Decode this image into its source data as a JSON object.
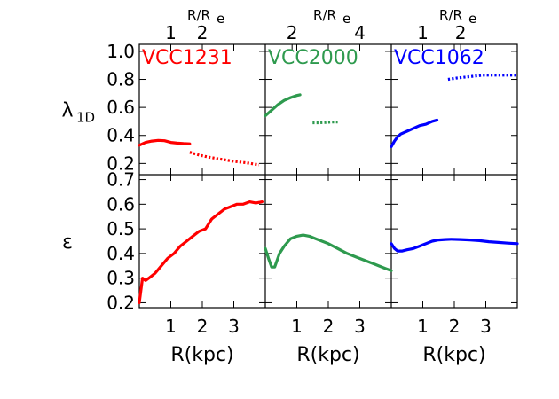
{
  "chart_data": {
    "type": "line",
    "top_axis_label": "R/R",
    "top_axis_label_sub": "e",
    "bottom_axis_label": "R(kpc)",
    "x_range": [
      0,
      4
    ],
    "x_ticks": [
      1,
      2,
      3
    ],
    "rows": [
      {
        "ylabel": "λ",
        "ylabel_sub": "1D",
        "ylim": [
          0.12,
          1.05
        ],
        "yticks": [
          0.2,
          0.4,
          0.6,
          0.8,
          1.0
        ],
        "ytick_labels": [
          "0.2",
          "0.4",
          "0.6",
          "0.8",
          "1.0"
        ]
      },
      {
        "ylabel": "ε",
        "ylabel_sub": "",
        "ylim": [
          0.18,
          0.72
        ],
        "yticks": [
          0.2,
          0.3,
          0.4,
          0.5,
          0.6,
          0.7
        ],
        "ytick_labels": [
          "0.2",
          "0.3",
          "0.4",
          "0.5",
          "0.6",
          "0.7"
        ]
      }
    ],
    "panels": [
      {
        "name": "VCC1231",
        "color": "#ff0000",
        "re_ticks": [
          1,
          2
        ],
        "re_tick_kpc": [
          1.0,
          2.0
        ],
        "lambda_solid": {
          "x": [
            0.0,
            0.2,
            0.4,
            0.6,
            0.8,
            1.0,
            1.2,
            1.4,
            1.6
          ],
          "y": [
            0.33,
            0.35,
            0.36,
            0.365,
            0.362,
            0.35,
            0.345,
            0.342,
            0.34
          ]
        },
        "lambda_dotted": {
          "x": [
            1.6,
            1.9,
            2.2,
            2.6,
            3.0,
            3.4,
            3.8
          ],
          "y": [
            0.28,
            0.26,
            0.245,
            0.23,
            0.215,
            0.205,
            0.19
          ]
        },
        "eps": {
          "x": [
            0.0,
            0.05,
            0.1,
            0.2,
            0.3,
            0.5,
            0.7,
            0.9,
            1.1,
            1.3,
            1.5,
            1.7,
            1.9,
            2.1,
            2.3,
            2.5,
            2.7,
            2.9,
            3.1,
            3.3,
            3.5,
            3.7,
            3.9
          ],
          "y": [
            0.2,
            0.25,
            0.3,
            0.29,
            0.3,
            0.32,
            0.35,
            0.38,
            0.4,
            0.43,
            0.45,
            0.47,
            0.49,
            0.5,
            0.54,
            0.56,
            0.58,
            0.59,
            0.6,
            0.6,
            0.61,
            0.605,
            0.61
          ]
        }
      },
      {
        "name": "VCC2000",
        "color": "#2e9a4e",
        "re_ticks": [
          2,
          4
        ],
        "re_tick_kpc": [
          0.85,
          3.0
        ],
        "lambda_solid": {
          "x": [
            0.0,
            0.2,
            0.4,
            0.6,
            0.8,
            1.0,
            1.1
          ],
          "y": [
            0.54,
            0.58,
            0.62,
            0.65,
            0.67,
            0.685,
            0.69
          ]
        },
        "lambda_dotted": {
          "x": [
            1.5,
            1.7,
            1.9,
            2.1,
            2.3
          ],
          "y": [
            0.49,
            0.49,
            0.492,
            0.495,
            0.495
          ]
        },
        "eps": {
          "x": [
            0.0,
            0.1,
            0.2,
            0.3,
            0.45,
            0.6,
            0.8,
            1.0,
            1.2,
            1.4,
            1.6,
            1.8,
            2.0,
            2.3,
            2.6,
            2.9,
            3.2,
            3.5,
            3.8,
            4.0
          ],
          "y": [
            0.42,
            0.38,
            0.345,
            0.345,
            0.4,
            0.43,
            0.46,
            0.47,
            0.475,
            0.47,
            0.46,
            0.45,
            0.44,
            0.42,
            0.4,
            0.385,
            0.37,
            0.355,
            0.34,
            0.33
          ]
        }
      },
      {
        "name": "VCC1062",
        "color": "#0000ff",
        "re_ticks": [
          1,
          2
        ],
        "re_tick_kpc": [
          1.0,
          2.2
        ],
        "lambda_solid": {
          "x": [
            0.0,
            0.1,
            0.2,
            0.3,
            0.5,
            0.7,
            0.9,
            1.1,
            1.3,
            1.45
          ],
          "y": [
            0.32,
            0.36,
            0.39,
            0.41,
            0.43,
            0.45,
            0.47,
            0.48,
            0.5,
            0.51
          ]
        },
        "lambda_dotted": {
          "x": [
            1.8,
            2.1,
            2.5,
            2.9,
            3.3,
            3.7,
            3.95
          ],
          "y": [
            0.8,
            0.81,
            0.82,
            0.83,
            0.83,
            0.83,
            0.83
          ]
        },
        "eps": {
          "x": [
            0.0,
            0.1,
            0.2,
            0.35,
            0.5,
            0.7,
            0.9,
            1.1,
            1.3,
            1.5,
            1.7,
            1.9,
            2.2,
            2.5,
            2.8,
            3.1,
            3.4,
            3.7,
            4.0
          ],
          "y": [
            0.44,
            0.42,
            0.41,
            0.41,
            0.415,
            0.42,
            0.43,
            0.44,
            0.45,
            0.455,
            0.457,
            0.458,
            0.457,
            0.455,
            0.452,
            0.448,
            0.445,
            0.442,
            0.44
          ]
        }
      }
    ]
  }
}
